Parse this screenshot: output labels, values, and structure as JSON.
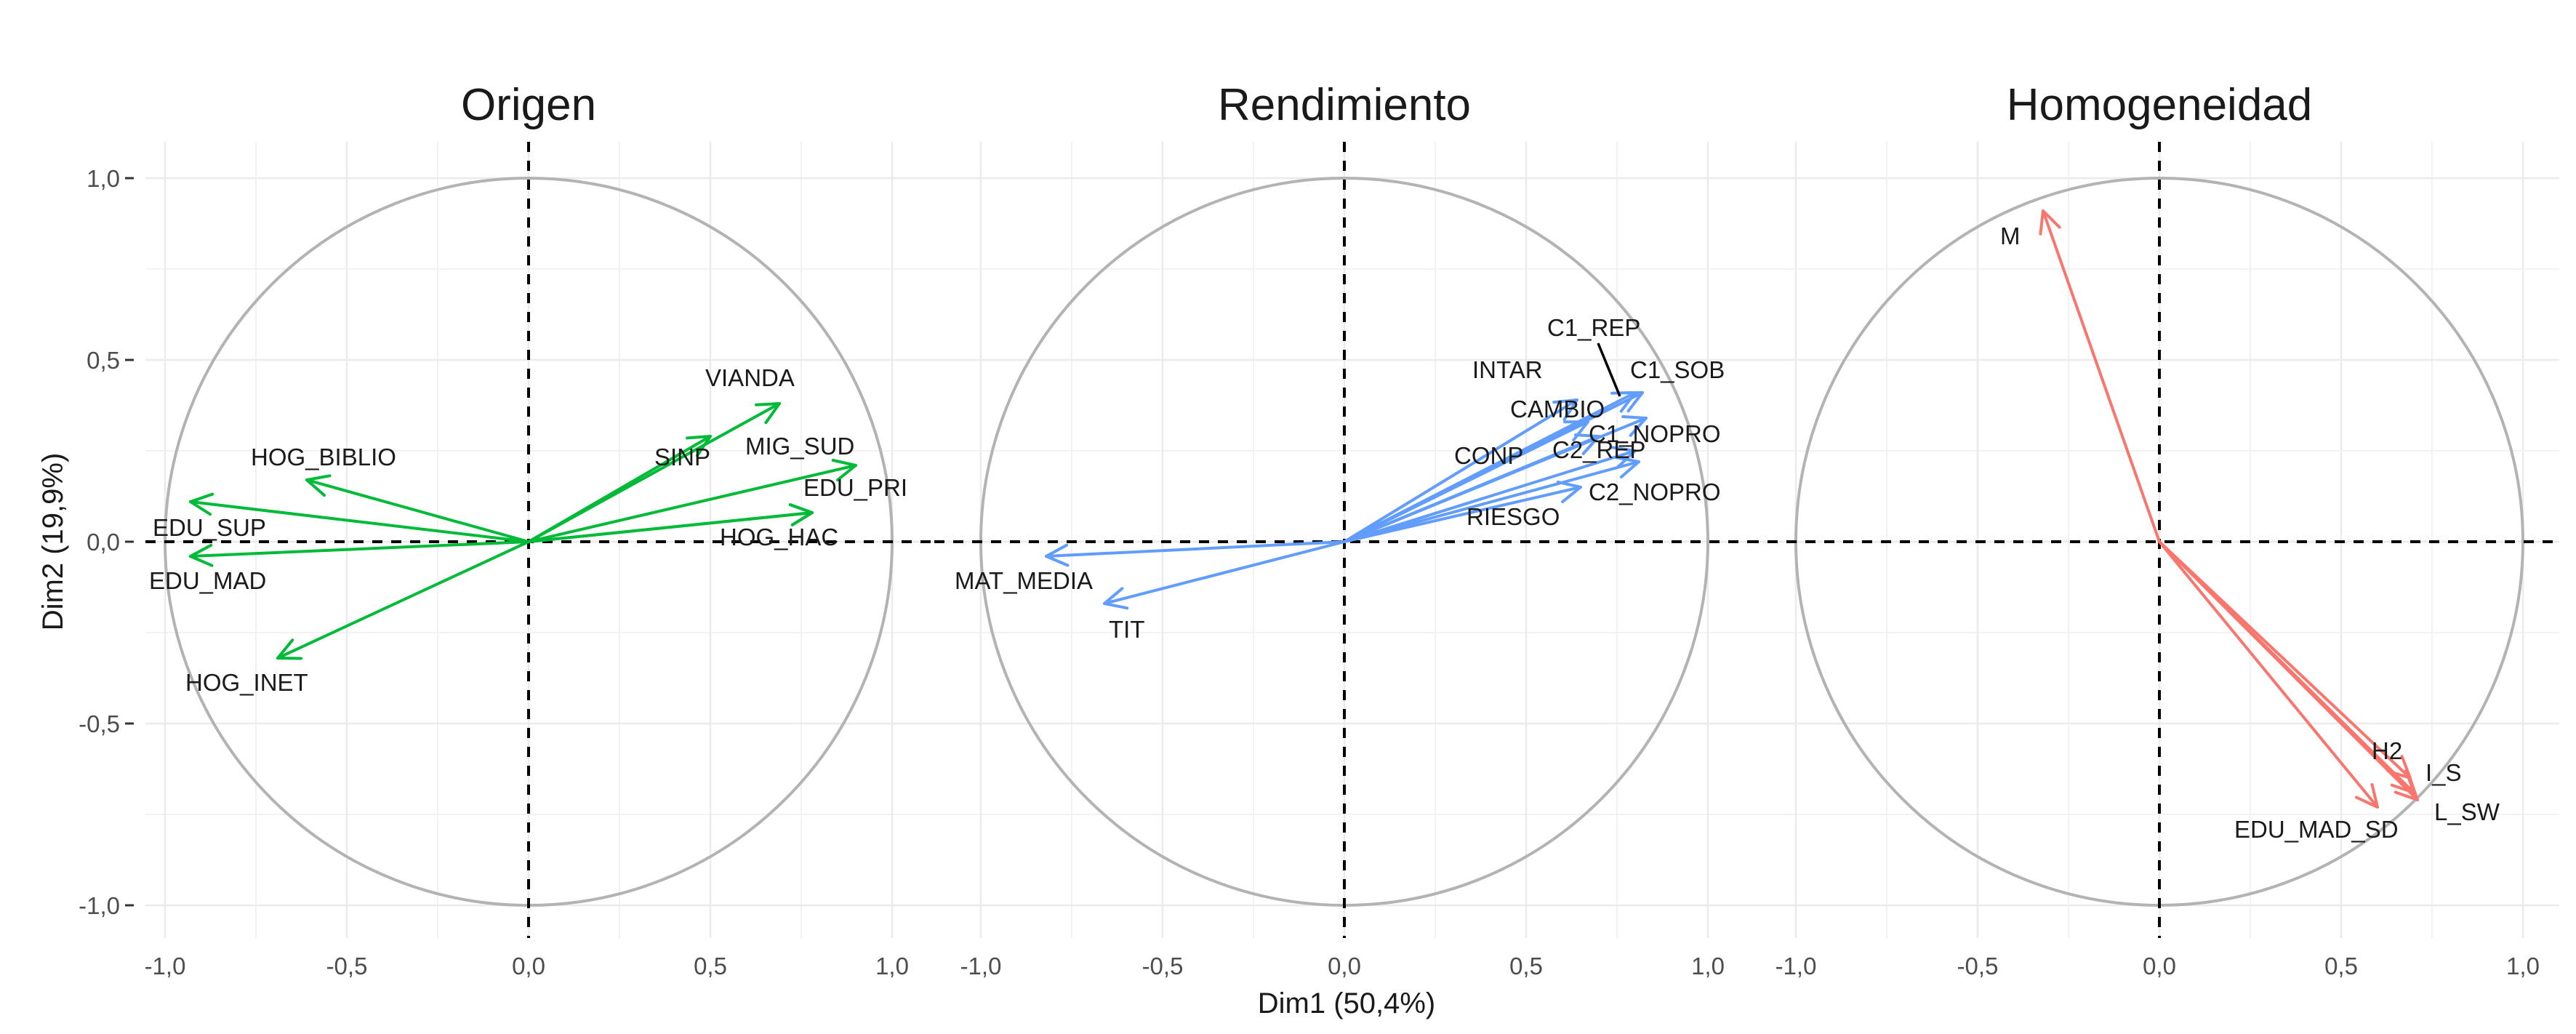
{
  "chart_data": {
    "type": "biplot",
    "xlabel": "Dim1 (50,4%)",
    "ylabel": "Dim2 (19,9%)",
    "xlim": [
      -1.0,
      1.0
    ],
    "ylim": [
      -1.0,
      1.0
    ],
    "x_ticks": [
      -1.0,
      -0.5,
      0.0,
      0.5,
      1.0
    ],
    "y_ticks": [
      -1.0,
      -0.5,
      0.0,
      0.5,
      1.0
    ],
    "x_tick_labels": [
      "-1,0",
      "-0,5",
      "0,0",
      "0,5",
      "1,0"
    ],
    "y_tick_labels": [
      "-1,0",
      "-0,5",
      "0,0",
      "0,5",
      "1,0"
    ],
    "grid": true,
    "unit_circle": true,
    "reference_lines": "dashed at x=0 and y=0",
    "panels": [
      {
        "title": "Origen",
        "color": "#00BA38",
        "vectors": [
          {
            "name": "VIANDA",
            "x": 0.69,
            "y": 0.38
          },
          {
            "name": "SINP",
            "x": 0.5,
            "y": 0.29
          },
          {
            "name": "MIG_SUD",
            "x": 0.9,
            "y": 0.21
          },
          {
            "name": "EDU_PRI",
            "x": 0.78,
            "y": 0.08
          },
          {
            "name": "HOG_HAC",
            "x": 0.78,
            "y": 0.08
          },
          {
            "name": "HOG_BIBLIO",
            "x": -0.61,
            "y": 0.17
          },
          {
            "name": "EDU_SUP",
            "x": -0.93,
            "y": 0.11
          },
          {
            "name": "EDU_MAD",
            "x": -0.93,
            "y": -0.04
          },
          {
            "name": "HOG_INET",
            "x": -0.69,
            "y": -0.32
          }
        ]
      },
      {
        "title": "Rendimiento",
        "color": "#619CFF",
        "vectors": [
          {
            "name": "C1_REP",
            "x": 0.8,
            "y": 0.41
          },
          {
            "name": "C1_SOB",
            "x": 0.82,
            "y": 0.41
          },
          {
            "name": "INTAR",
            "x": 0.64,
            "y": 0.39
          },
          {
            "name": "CAMBIO",
            "x": 0.67,
            "y": 0.33
          },
          {
            "name": "C1_NOPRO",
            "x": 0.83,
            "y": 0.34
          },
          {
            "name": "CONP",
            "x": 0.7,
            "y": 0.29
          },
          {
            "name": "C2_REP",
            "x": 0.8,
            "y": 0.25
          },
          {
            "name": "C2_NOPRO",
            "x": 0.81,
            "y": 0.22
          },
          {
            "name": "RIESGO",
            "x": 0.65,
            "y": 0.15
          },
          {
            "name": "MAT_MEDIA",
            "x": -0.82,
            "y": -0.04
          },
          {
            "name": "TIT",
            "x": -0.66,
            "y": -0.17
          }
        ]
      },
      {
        "title": "Homogeneidad",
        "color": "#F8766D",
        "vectors": [
          {
            "name": "M",
            "x": -0.32,
            "y": 0.91
          },
          {
            "name": "H2",
            "x": 0.69,
            "y": -0.65
          },
          {
            "name": "I_S",
            "x": 0.7,
            "y": -0.69
          },
          {
            "name": "L_SW",
            "x": 0.71,
            "y": -0.71
          },
          {
            "name": "EDU_MAD_SD",
            "x": 0.6,
            "y": -0.73
          }
        ]
      }
    ]
  }
}
